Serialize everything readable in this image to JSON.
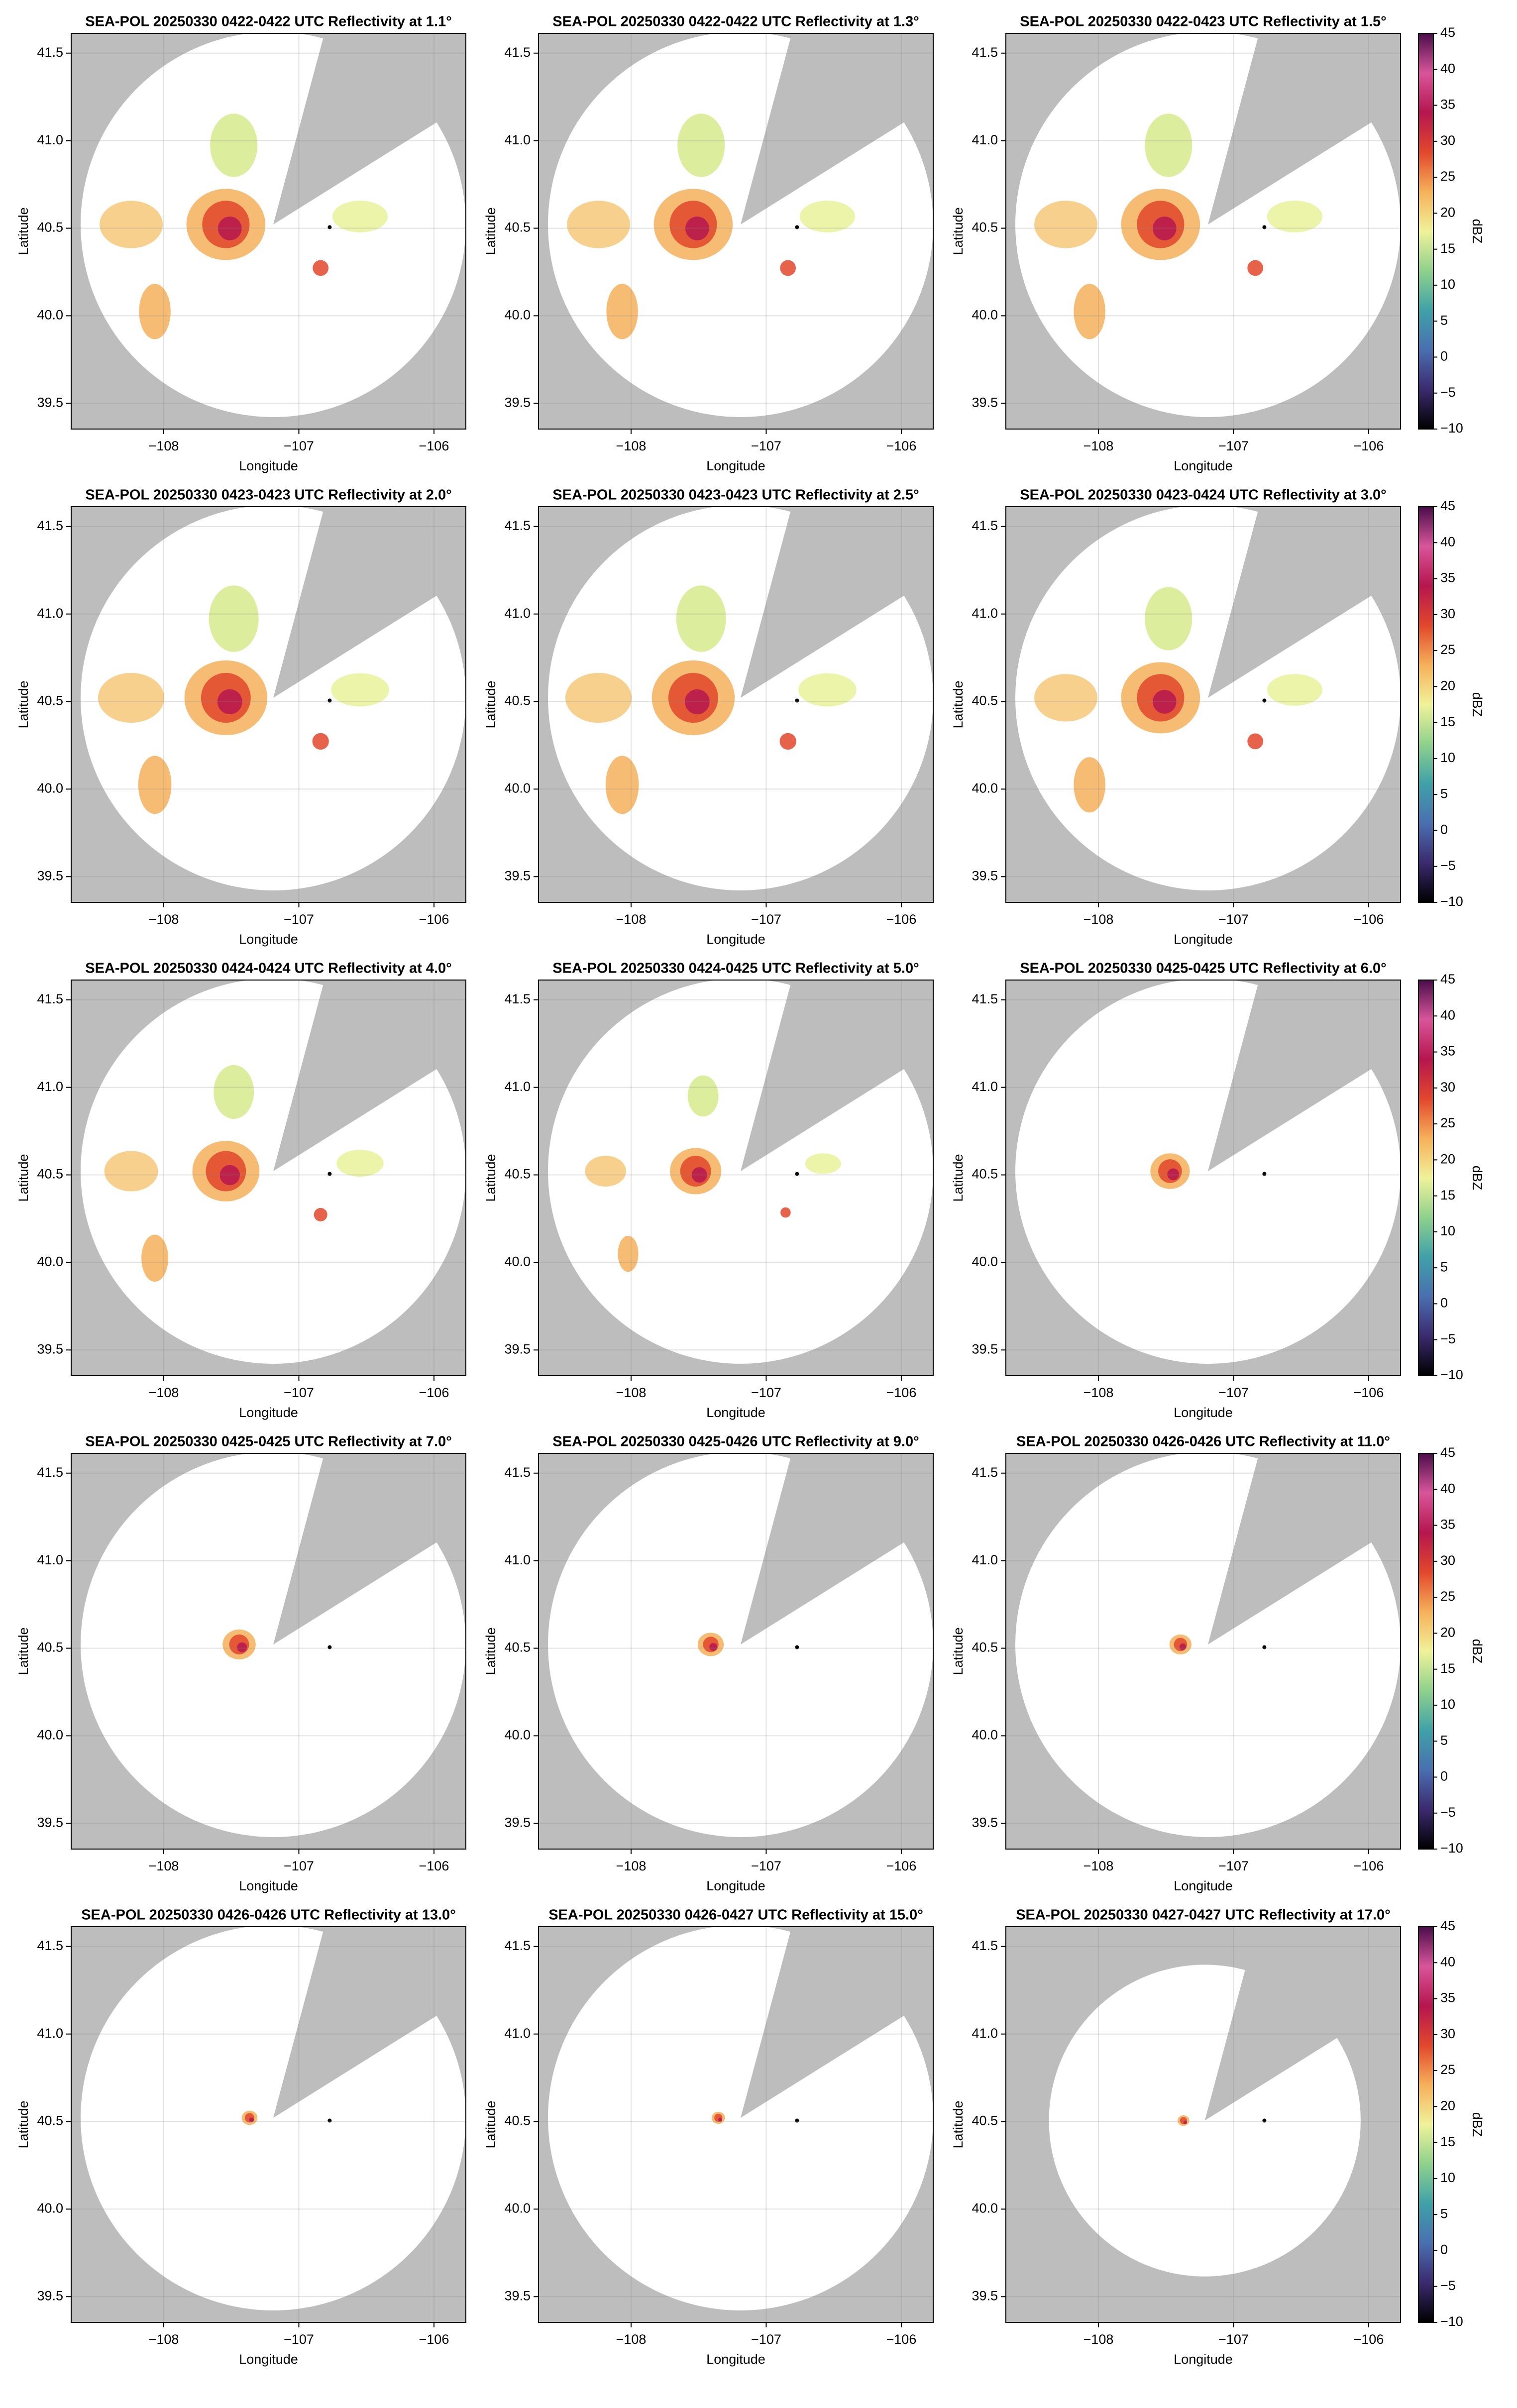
{
  "chart_data": [
    {
      "type": "radar",
      "title": "SEA-POL 20250330 0422-0422 UTC Reflectivity at 1.1°",
      "xlabel": "Longitude",
      "ylabel": "Latitude",
      "xlim": [
        -108.685,
        -105.764
      ],
      "ylim": [
        39.353,
        41.613
      ],
      "xticks": [
        {
          "value": -108,
          "label": "−108"
        },
        {
          "value": -107,
          "label": "−107"
        },
        {
          "value": -106,
          "label": "−106"
        }
      ],
      "yticks": [
        39.5,
        {
          "value": 40,
          "label": "40.0"
        },
        40.5,
        {
          "value": 41,
          "label": "41.0"
        },
        41.5
      ],
      "grid": true
    },
    {
      "type": "radar",
      "title": "SEA-POL 20250330 0422-0422 UTC Reflectivity at 1.3°",
      "xlabel": "Longitude",
      "ylabel": "Latitude",
      "xlim": [
        -108.685,
        -105.764
      ],
      "ylim": [
        39.353,
        41.613
      ],
      "xticks": [
        {
          "value": -108,
          "label": "−108"
        },
        {
          "value": -107,
          "label": "−107"
        },
        {
          "value": -106,
          "label": "−106"
        }
      ],
      "yticks": [
        39.5,
        {
          "value": 40,
          "label": "40.0"
        },
        40.5,
        {
          "value": 41,
          "label": "41.0"
        },
        41.5
      ],
      "grid": true
    },
    {
      "type": "radar",
      "title": "SEA-POL 20250330 0422-0423 UTC Reflectivity at 1.5°",
      "xlabel": "Longitude",
      "ylabel": "Latitude",
      "xlim": [
        -108.685,
        -105.764
      ],
      "ylim": [
        39.353,
        41.613
      ],
      "xticks": [
        {
          "value": -108,
          "label": "−108"
        },
        {
          "value": -107,
          "label": "−107"
        },
        {
          "value": -106,
          "label": "−106"
        }
      ],
      "yticks": [
        39.5,
        {
          "value": 40,
          "label": "40.0"
        },
        40.5,
        {
          "value": 41,
          "label": "41.0"
        },
        41.5
      ],
      "grid": true,
      "colorbar": {
        "label": "dBZ",
        "lim": [
          -10,
          45
        ],
        "ticks": [
          {
            "value": -10,
            "label": "−10"
          },
          {
            "value": -5,
            "label": "−5"
          },
          0,
          5,
          10,
          15,
          20,
          25,
          30,
          35,
          40,
          45
        ],
        "colors": [
          "#000000",
          "#3b2a6e",
          "#4a6fb0",
          "#3fa1a8",
          "#8fd18c",
          "#f0f29a",
          "#f6b05a",
          "#e2472c",
          "#b5164f",
          "#d9559a",
          "#4a0d4a"
        ]
      }
    },
    {
      "type": "radar",
      "title": "SEA-POL 20250330 0423-0423 UTC Reflectivity at 2.0°",
      "xlabel": "Longitude",
      "ylabel": "Latitude",
      "xlim": [
        -108.685,
        -105.764
      ],
      "ylim": [
        39.353,
        41.613
      ],
      "xticks": [
        {
          "value": -108,
          "label": "−108"
        },
        {
          "value": -107,
          "label": "−107"
        },
        {
          "value": -106,
          "label": "−106"
        }
      ],
      "yticks": [
        39.5,
        {
          "value": 40,
          "label": "40.0"
        },
        40.5,
        {
          "value": 41,
          "label": "41.0"
        },
        41.5
      ],
      "grid": true
    },
    {
      "type": "radar",
      "title": "SEA-POL 20250330 0423-0423 UTC Reflectivity at 2.5°",
      "xlabel": "Longitude",
      "ylabel": "Latitude",
      "xlim": [
        -108.685,
        -105.764
      ],
      "ylim": [
        39.353,
        41.613
      ],
      "xticks": [
        {
          "value": -108,
          "label": "−108"
        },
        {
          "value": -107,
          "label": "−107"
        },
        {
          "value": -106,
          "label": "−106"
        }
      ],
      "yticks": [
        39.5,
        {
          "value": 40,
          "label": "40.0"
        },
        40.5,
        {
          "value": 41,
          "label": "41.0"
        },
        41.5
      ],
      "grid": true
    },
    {
      "type": "radar",
      "title": "SEA-POL 20250330 0423-0424 UTC Reflectivity at 3.0°",
      "xlabel": "Longitude",
      "ylabel": "Latitude",
      "xlim": [
        -108.685,
        -105.764
      ],
      "ylim": [
        39.353,
        41.613
      ],
      "xticks": [
        {
          "value": -108,
          "label": "−108"
        },
        {
          "value": -107,
          "label": "−107"
        },
        {
          "value": -106,
          "label": "−106"
        }
      ],
      "yticks": [
        39.5,
        {
          "value": 40,
          "label": "40.0"
        },
        40.5,
        {
          "value": 41,
          "label": "41.0"
        },
        41.5
      ],
      "grid": true,
      "colorbar": {
        "label": "dBZ",
        "lim": [
          -10,
          45
        ],
        "ticks": [
          {
            "value": -10,
            "label": "−10"
          },
          {
            "value": -5,
            "label": "−5"
          },
          0,
          5,
          10,
          15,
          20,
          25,
          30,
          35,
          40,
          45
        ],
        "colors": [
          "#000000",
          "#3b2a6e",
          "#4a6fb0",
          "#3fa1a8",
          "#8fd18c",
          "#f0f29a",
          "#f6b05a",
          "#e2472c",
          "#b5164f",
          "#d9559a",
          "#4a0d4a"
        ]
      }
    },
    {
      "type": "radar",
      "title": "SEA-POL 20250330 0424-0424 UTC Reflectivity at 4.0°",
      "xlabel": "Longitude",
      "ylabel": "Latitude",
      "xlim": [
        -108.685,
        -105.764
      ],
      "ylim": [
        39.353,
        41.613
      ],
      "xticks": [
        {
          "value": -108,
          "label": "−108"
        },
        {
          "value": -107,
          "label": "−107"
        },
        {
          "value": -106,
          "label": "−106"
        }
      ],
      "yticks": [
        39.5,
        {
          "value": 40,
          "label": "40.0"
        },
        40.5,
        {
          "value": 41,
          "label": "41.0"
        },
        41.5
      ],
      "grid": true
    },
    {
      "type": "radar",
      "title": "SEA-POL 20250330 0424-0425 UTC Reflectivity at 5.0°",
      "xlabel": "Longitude",
      "ylabel": "Latitude",
      "xlim": [
        -108.685,
        -105.764
      ],
      "ylim": [
        39.353,
        41.613
      ],
      "xticks": [
        {
          "value": -108,
          "label": "−108"
        },
        {
          "value": -107,
          "label": "−107"
        },
        {
          "value": -106,
          "label": "−106"
        }
      ],
      "yticks": [
        39.5,
        {
          "value": 40,
          "label": "40.0"
        },
        40.5,
        {
          "value": 41,
          "label": "41.0"
        },
        41.5
      ],
      "grid": true
    },
    {
      "type": "radar",
      "title": "SEA-POL 20250330 0425-0425 UTC Reflectivity at 6.0°",
      "xlabel": "Longitude",
      "ylabel": "Latitude",
      "xlim": [
        -108.685,
        -105.764
      ],
      "ylim": [
        39.353,
        41.613
      ],
      "xticks": [
        {
          "value": -108,
          "label": "−108"
        },
        {
          "value": -107,
          "label": "−107"
        },
        {
          "value": -106,
          "label": "−106"
        }
      ],
      "yticks": [
        39.5,
        {
          "value": 40,
          "label": "40.0"
        },
        40.5,
        {
          "value": 41,
          "label": "41.0"
        },
        41.5
      ],
      "grid": true,
      "colorbar": {
        "label": "dBZ",
        "lim": [
          -10,
          45
        ],
        "ticks": [
          {
            "value": -10,
            "label": "−10"
          },
          {
            "value": -5,
            "label": "−5"
          },
          0,
          5,
          10,
          15,
          20,
          25,
          30,
          35,
          40,
          45
        ],
        "colors": [
          "#000000",
          "#3b2a6e",
          "#4a6fb0",
          "#3fa1a8",
          "#8fd18c",
          "#f0f29a",
          "#f6b05a",
          "#e2472c",
          "#b5164f",
          "#d9559a",
          "#4a0d4a"
        ]
      }
    },
    {
      "type": "radar",
      "title": "SEA-POL 20250330 0425-0425 UTC Reflectivity at 7.0°",
      "xlabel": "Longitude",
      "ylabel": "Latitude",
      "xlim": [
        -108.685,
        -105.764
      ],
      "ylim": [
        39.353,
        41.613
      ],
      "xticks": [
        {
          "value": -108,
          "label": "−108"
        },
        {
          "value": -107,
          "label": "−107"
        },
        {
          "value": -106,
          "label": "−106"
        }
      ],
      "yticks": [
        39.5,
        {
          "value": 40,
          "label": "40.0"
        },
        40.5,
        {
          "value": 41,
          "label": "41.0"
        },
        41.5
      ],
      "grid": true
    },
    {
      "type": "radar",
      "title": "SEA-POL 20250330 0425-0426 UTC Reflectivity at 9.0°",
      "xlabel": "Longitude",
      "ylabel": "Latitude",
      "xlim": [
        -108.685,
        -105.764
      ],
      "ylim": [
        39.353,
        41.613
      ],
      "xticks": [
        {
          "value": -108,
          "label": "−108"
        },
        {
          "value": -107,
          "label": "−107"
        },
        {
          "value": -106,
          "label": "−106"
        }
      ],
      "yticks": [
        39.5,
        {
          "value": 40,
          "label": "40.0"
        },
        40.5,
        {
          "value": 41,
          "label": "41.0"
        },
        41.5
      ],
      "grid": true
    },
    {
      "type": "radar",
      "title": "SEA-POL 20250330 0426-0426 UTC Reflectivity at 11.0°",
      "xlabel": "Longitude",
      "ylabel": "Latitude",
      "xlim": [
        -108.685,
        -105.764
      ],
      "ylim": [
        39.353,
        41.613
      ],
      "xticks": [
        {
          "value": -108,
          "label": "−108"
        },
        {
          "value": -107,
          "label": "−107"
        },
        {
          "value": -106,
          "label": "−106"
        }
      ],
      "yticks": [
        39.5,
        {
          "value": 40,
          "label": "40.0"
        },
        40.5,
        {
          "value": 41,
          "label": "41.0"
        },
        41.5
      ],
      "grid": true,
      "colorbar": {
        "label": "dBZ",
        "lim": [
          -10,
          45
        ],
        "ticks": [
          {
            "value": -10,
            "label": "−10"
          },
          {
            "value": -5,
            "label": "−5"
          },
          0,
          5,
          10,
          15,
          20,
          25,
          30,
          35,
          40,
          45
        ],
        "colors": [
          "#000000",
          "#3b2a6e",
          "#4a6fb0",
          "#3fa1a8",
          "#8fd18c",
          "#f0f29a",
          "#f6b05a",
          "#e2472c",
          "#b5164f",
          "#d9559a",
          "#4a0d4a"
        ]
      }
    },
    {
      "type": "radar",
      "title": "SEA-POL 20250330 0426-0426 UTC Reflectivity at 13.0°",
      "xlabel": "Longitude",
      "ylabel": "Latitude",
      "xlim": [
        -108.685,
        -105.764
      ],
      "ylim": [
        39.353,
        41.613
      ],
      "xticks": [
        {
          "value": -108,
          "label": "−108"
        },
        {
          "value": -107,
          "label": "−107"
        },
        {
          "value": -106,
          "label": "−106"
        }
      ],
      "yticks": [
        39.5,
        {
          "value": 40,
          "label": "40.0"
        },
        40.5,
        {
          "value": 41,
          "label": "41.0"
        },
        41.5
      ],
      "grid": true
    },
    {
      "type": "radar",
      "title": "SEA-POL 20250330 0426-0427 UTC Reflectivity at 15.0°",
      "xlabel": "Longitude",
      "ylabel": "Latitude",
      "xlim": [
        -108.685,
        -105.764
      ],
      "ylim": [
        39.353,
        41.613
      ],
      "xticks": [
        {
          "value": -108,
          "label": "−108"
        },
        {
          "value": -107,
          "label": "−107"
        },
        {
          "value": -106,
          "label": "−106"
        }
      ],
      "yticks": [
        39.5,
        {
          "value": 40,
          "label": "40.0"
        },
        40.5,
        {
          "value": 41,
          "label": "41.0"
        },
        41.5
      ],
      "grid": true
    },
    {
      "type": "radar",
      "title": "SEA-POL 20250330 0427-0427 UTC Reflectivity at 17.0°",
      "xlabel": "Longitude",
      "ylabel": "Latitude",
      "xlim": [
        -108.685,
        -105.764
      ],
      "ylim": [
        39.353,
        41.613
      ],
      "xticks": [
        {
          "value": -108,
          "label": "−108"
        },
        {
          "value": -107,
          "label": "−107"
        },
        {
          "value": -106,
          "label": "−106"
        }
      ],
      "yticks": [
        39.5,
        {
          "value": 40,
          "label": "40.0"
        },
        40.5,
        {
          "value": 41,
          "label": "41.0"
        },
        41.5
      ],
      "grid": true,
      "colorbar": {
        "label": "dBZ",
        "lim": [
          -10,
          45
        ],
        "ticks": [
          {
            "value": -10,
            "label": "−10"
          },
          {
            "value": -5,
            "label": "−5"
          },
          0,
          5,
          10,
          15,
          20,
          25,
          30,
          35,
          40,
          45
        ],
        "colors": [
          "#000000",
          "#3b2a6e",
          "#4a6fb0",
          "#3fa1a8",
          "#8fd18c",
          "#f0f29a",
          "#f6b05a",
          "#e2472c",
          "#b5164f",
          "#d9559a",
          "#4a0d4a"
        ]
      }
    }
  ]
}
